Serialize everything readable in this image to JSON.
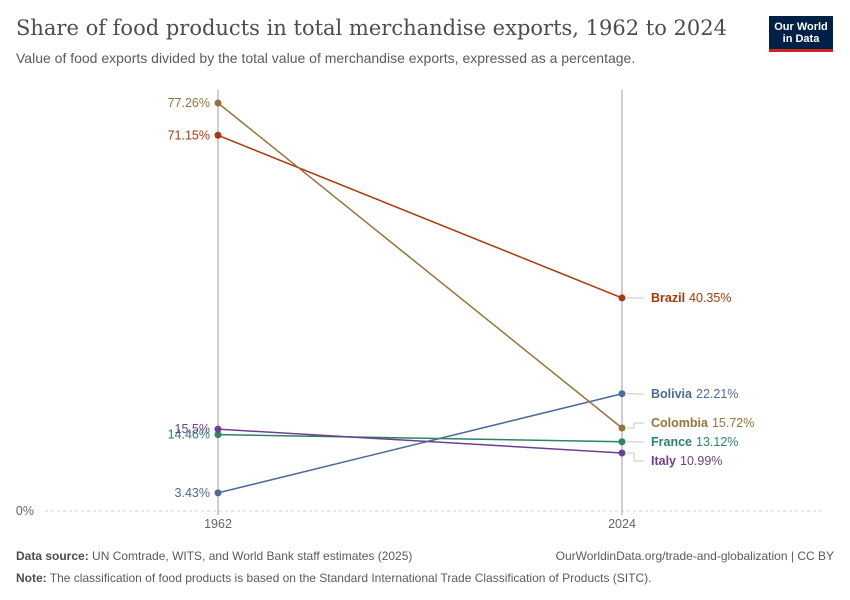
{
  "header": {
    "title": "Share of food products in total merchandise exports, 1962 to 2024",
    "subtitle": "Value of food exports divided by the total value of merchandise exports, expressed as a percentage."
  },
  "logo": {
    "line1": "Our World",
    "line2": "in Data"
  },
  "footer": {
    "source_label": "Data source:",
    "source_text": "UN Comtrade, WITS, and World Bank staff estimates (2025)",
    "url_text": "OurWorldinData.org/trade-and-globalization | CC BY",
    "note_label": "Note:",
    "note_text": "The classification of food products is based on the Standard International Trade Classification of Products (SITC)."
  },
  "chart_data": {
    "type": "line",
    "chart_style": "slope",
    "x": [
      "1962",
      "2024"
    ],
    "ylim": [
      0,
      77.26
    ],
    "y_tick_labels": [
      "0%"
    ],
    "series": [
      {
        "name": "Brazil",
        "values": [
          71.15,
          40.35
        ],
        "start_label": "71.15%",
        "end_label": "40.35%",
        "color": "#b13507"
      },
      {
        "name": "Bolivia",
        "values": [
          3.43,
          22.21
        ],
        "start_label": "3.43%",
        "end_label": "22.21%",
        "color": "#4c6a9c"
      },
      {
        "name": "Colombia",
        "values": [
          77.26,
          15.72
        ],
        "start_label": "77.26%",
        "end_label": "15.72%",
        "color": "#9a7137"
      },
      {
        "name": "France",
        "values": [
          14.46,
          13.12
        ],
        "start_label": "14.46%",
        "end_label": "13.12%",
        "color": "#2c8465"
      },
      {
        "name": "Italy",
        "values": [
          15.5,
          10.99
        ],
        "start_label": "15.5%",
        "end_label": "10.99%",
        "color": "#6d3e91"
      }
    ]
  }
}
